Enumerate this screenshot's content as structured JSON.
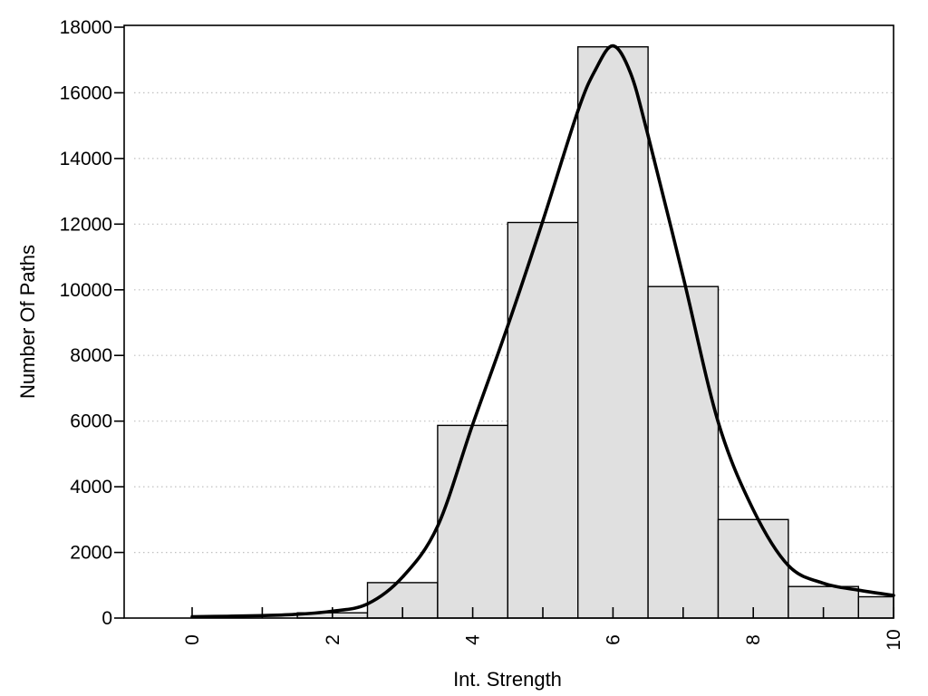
{
  "chart_data": {
    "type": "bar",
    "subtype": "histogram_with_density_curve",
    "title": "",
    "xlabel": "Int. Strength",
    "ylabel": "Number Of Paths",
    "xlim": [
      -1,
      10.05
    ],
    "ylim": [
      0,
      18000
    ],
    "grid": "horizontal dotted gridlines at every y tick (2000 steps), full plot box border",
    "legend": "none",
    "x_ticks": [
      0,
      1,
      2,
      3,
      4,
      5,
      6,
      7,
      8,
      9,
      10
    ],
    "x_labeled_ticks": [
      0,
      2,
      4,
      6,
      8,
      10
    ],
    "x_tick_labels": [
      "0",
      "2",
      "4",
      "6",
      "8",
      "10"
    ],
    "x_tick_label_rotation": -90,
    "y_ticks": [
      0,
      2000,
      4000,
      6000,
      8000,
      10000,
      12000,
      14000,
      16000,
      18000
    ],
    "y_tick_labels": [
      "0",
      "2000",
      "4000",
      "6000",
      "8000",
      "10000",
      "12000",
      "14000",
      "16000",
      "18000"
    ],
    "histogram_bins": [
      {
        "from": 1.5,
        "to": 2.5,
        "count": 160
      },
      {
        "from": 2.5,
        "to": 3.5,
        "count": 1080
      },
      {
        "from": 3.5,
        "to": 4.5,
        "count": 5870
      },
      {
        "from": 4.5,
        "to": 5.5,
        "count": 12050
      },
      {
        "from": 5.5,
        "to": 6.5,
        "count": 17400
      },
      {
        "from": 6.5,
        "to": 7.5,
        "count": 10100
      },
      {
        "from": 7.5,
        "to": 8.5,
        "count": 3000
      },
      {
        "from": 8.5,
        "to": 9.5,
        "count": 960
      },
      {
        "from": 9.5,
        "to": 10.0,
        "count": 650
      }
    ],
    "density_curve_points": [
      [
        0.0,
        40
      ],
      [
        0.5,
        55
      ],
      [
        1.0,
        75
      ],
      [
        1.5,
        115
      ],
      [
        2.0,
        210
      ],
      [
        2.5,
        430
      ],
      [
        3.0,
        1250
      ],
      [
        3.5,
        2800
      ],
      [
        4.0,
        5900
      ],
      [
        4.5,
        8900
      ],
      [
        5.0,
        12100
      ],
      [
        5.5,
        15450
      ],
      [
        5.75,
        16700
      ],
      [
        6.0,
        17430
      ],
      [
        6.25,
        16600
      ],
      [
        6.5,
        14700
      ],
      [
        7.0,
        10400
      ],
      [
        7.5,
        5970
      ],
      [
        8.0,
        3300
      ],
      [
        8.5,
        1600
      ],
      [
        9.0,
        1060
      ],
      [
        9.5,
        850
      ],
      [
        10.0,
        690
      ]
    ],
    "colors": {
      "background": "#ffffff",
      "bar_fill": "#e0e0e0",
      "bar_stroke": "#000000",
      "curve": "#000000",
      "axis": "#000000",
      "grid": "#c0c0c0",
      "text": "#000000"
    }
  }
}
